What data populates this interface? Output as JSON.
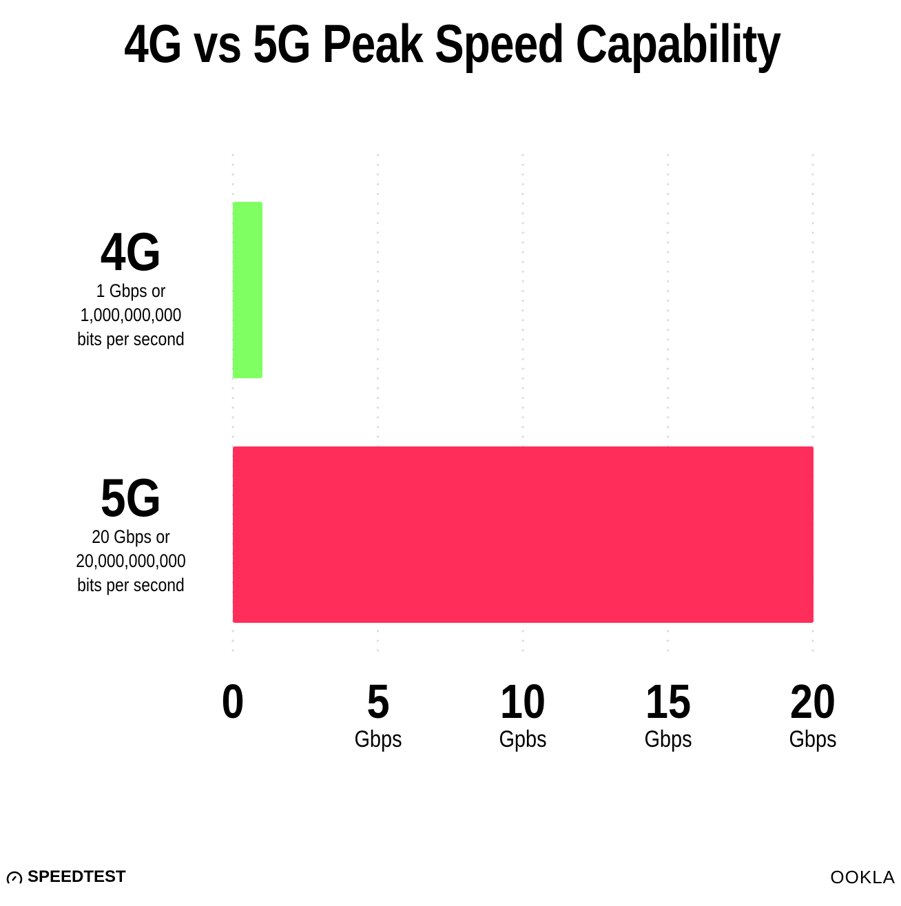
{
  "chart_data": {
    "type": "bar",
    "orientation": "horizontal",
    "title": "4G vs 5G Peak Speed Capability",
    "categories": [
      "4G",
      "5G"
    ],
    "category_notes": [
      "1 Gbps or\n1,000,000,000\nbits per second",
      "20 Gbps or\n20,000,000,000\nbits per second"
    ],
    "values": [
      1,
      20
    ],
    "colors": [
      "#80FF63",
      "#FF2D5A"
    ],
    "xlim": [
      0,
      20
    ],
    "grid": true,
    "x_ticks": [
      {
        "value": 0,
        "label": "0",
        "unit": ""
      },
      {
        "value": 5,
        "label": "5",
        "unit": "Gbps"
      },
      {
        "value": 10,
        "label": "10",
        "unit": "Gpbs"
      },
      {
        "value": 15,
        "label": "15",
        "unit": "Gbps"
      },
      {
        "value": 20,
        "label": "20",
        "unit": "Gbps"
      }
    ]
  },
  "footer": {
    "left_logo": "SPEEDTEST",
    "right_logo": "OOKLA"
  }
}
